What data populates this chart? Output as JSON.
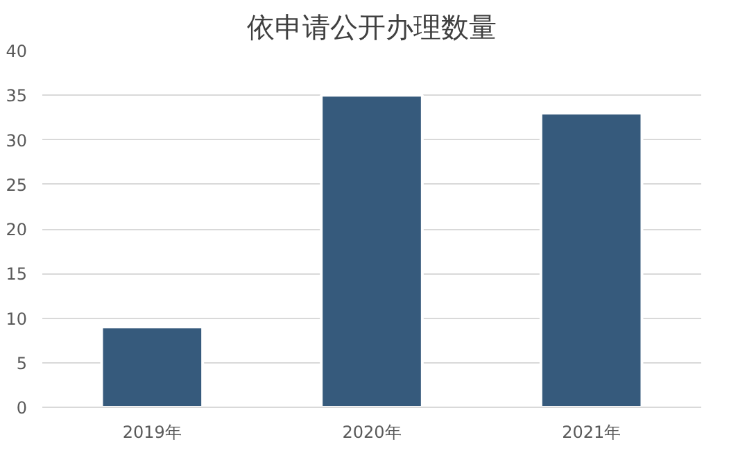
{
  "chart_data": {
    "type": "bar",
    "title": "依申请公开办理数量",
    "categories": [
      "2019年",
      "2020年",
      "2021年"
    ],
    "values": [
      9,
      35,
      33
    ],
    "color": "#365a7c",
    "ylim": [
      0,
      40
    ],
    "yticks": [
      0,
      5,
      10,
      15,
      20,
      25,
      30,
      35,
      40
    ],
    "grid": "y"
  }
}
